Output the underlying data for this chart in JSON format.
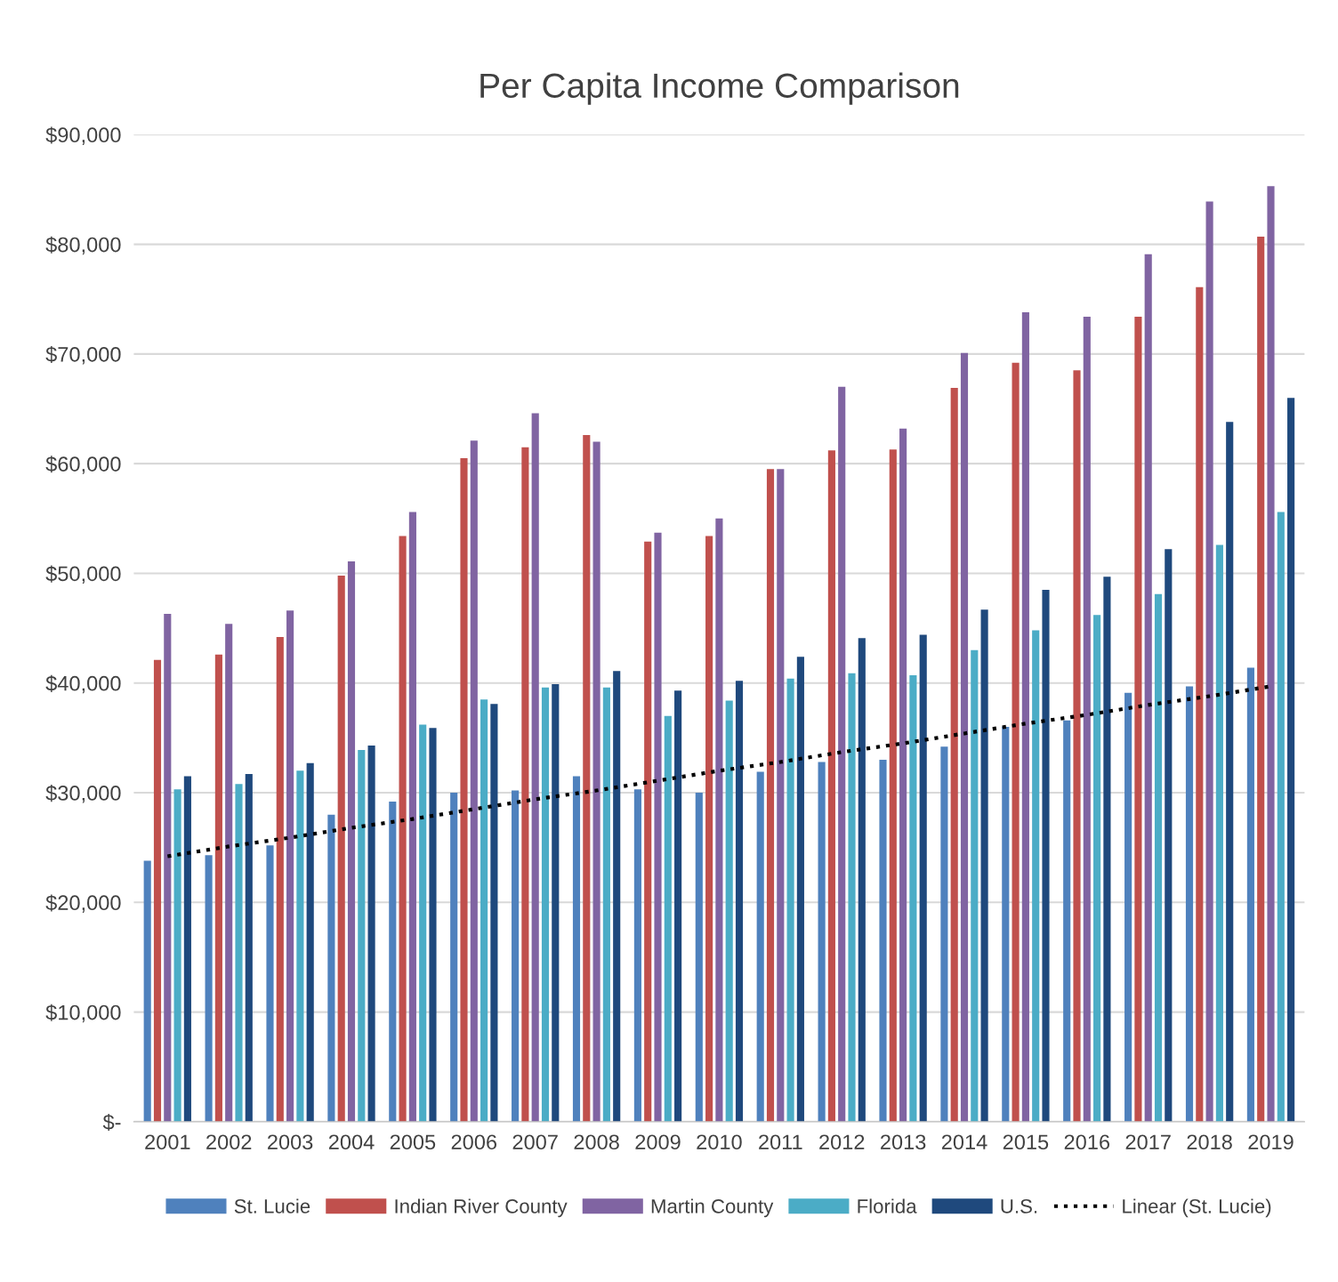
{
  "chart_data": {
    "type": "bar",
    "title": "Per Capita Income Comparison",
    "categories": [
      "2001",
      "2002",
      "2003",
      "2004",
      "2005",
      "2006",
      "2007",
      "2008",
      "2009",
      "2010",
      "2011",
      "2012",
      "2013",
      "2014",
      "2015",
      "2016",
      "2017",
      "2018",
      "2019"
    ],
    "series": [
      {
        "name": "St. Lucie",
        "color": "#4f81bd",
        "values": [
          23800,
          24300,
          25200,
          28000,
          29200,
          30000,
          30200,
          31500,
          30300,
          30000,
          31900,
          32800,
          33000,
          34200,
          36000,
          36600,
          39100,
          39700,
          41400
        ]
      },
      {
        "name": "Indian River County",
        "color": "#c0504d",
        "values": [
          42100,
          42600,
          44200,
          49800,
          53400,
          60500,
          61500,
          62600,
          52900,
          53400,
          59500,
          61200,
          61300,
          66900,
          69200,
          68500,
          73400,
          76100,
          80700
        ]
      },
      {
        "name": "Martin County",
        "color": "#8064a2",
        "values": [
          46300,
          45400,
          46600,
          51100,
          55600,
          62100,
          64600,
          62000,
          53700,
          55000,
          59500,
          67000,
          63200,
          70100,
          73800,
          73400,
          79100,
          83900,
          85300
        ]
      },
      {
        "name": "Florida",
        "color": "#4bacc6",
        "values": [
          30300,
          30800,
          32000,
          33900,
          36200,
          38500,
          39600,
          39600,
          37000,
          38400,
          40400,
          40900,
          40700,
          43000,
          44800,
          46200,
          48100,
          52600,
          55600
        ]
      },
      {
        "name": "U.S.",
        "color": "#1f497d",
        "values": [
          31500,
          31700,
          32700,
          34300,
          35900,
          38100,
          39900,
          41100,
          39300,
          40200,
          42400,
          44100,
          44400,
          46700,
          48500,
          49700,
          52200,
          63800,
          66000
        ]
      },
      {
        "name": "Linear (St. Lucie)",
        "type": "line",
        "color": "#000000",
        "line_style": "dotted",
        "values": [
          24200,
          25100,
          25900,
          26800,
          27600,
          28500,
          29400,
          30200,
          31100,
          32000,
          32800,
          33700,
          34500,
          35400,
          36300,
          37100,
          38000,
          38800,
          39700
        ]
      }
    ],
    "ylim": [
      0,
      90000
    ],
    "yticks": [
      {
        "value": 0,
        "label": "$-"
      },
      {
        "value": 10000,
        "label": "$10,000"
      },
      {
        "value": 20000,
        "label": "$20,000"
      },
      {
        "value": 30000,
        "label": "$30,000"
      },
      {
        "value": 40000,
        "label": "$40,000"
      },
      {
        "value": 50000,
        "label": "$50,000"
      },
      {
        "value": 60000,
        "label": "$60,000"
      },
      {
        "value": 70000,
        "label": "$70,000"
      },
      {
        "value": 80000,
        "label": "$80,000"
      },
      {
        "value": 90000,
        "label": "$90,000"
      }
    ],
    "grid": "y",
    "legend": "bottom"
  }
}
